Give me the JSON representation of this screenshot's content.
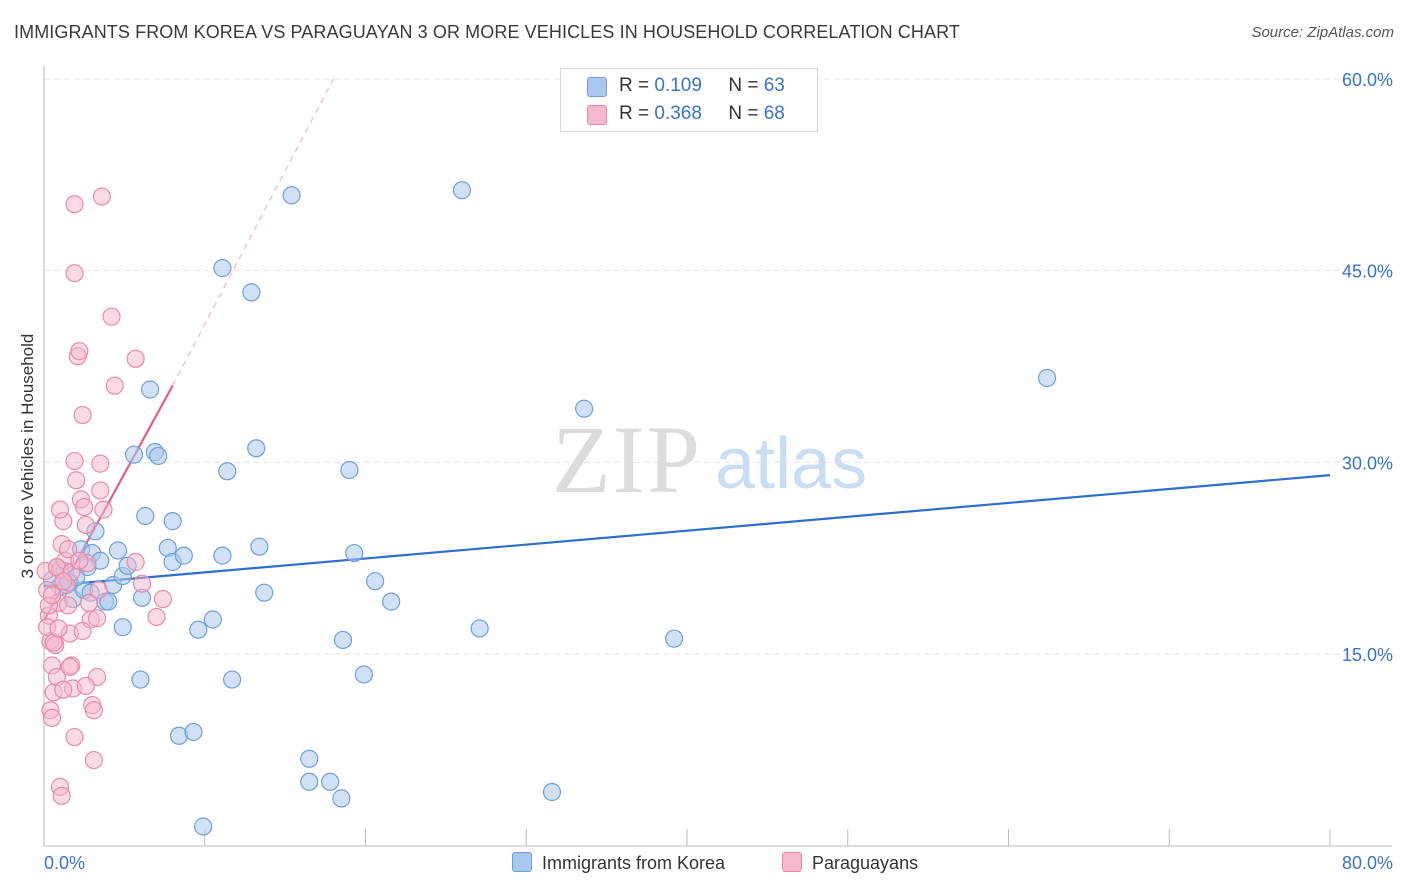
{
  "title": "IMMIGRANTS FROM KOREA VS PARAGUAYAN 3 OR MORE VEHICLES IN HOUSEHOLD CORRELATION CHART",
  "source": "Source: ZipAtlas.com",
  "watermark": {
    "zip": "ZIP",
    "atlas": "atlas"
  },
  "legend": {
    "rows": [
      {
        "r_label": "R =",
        "r_value": "0.109",
        "n_label": "N =",
        "n_value": "63"
      },
      {
        "r_label": "R =",
        "r_value": "0.368",
        "n_label": "N =",
        "n_value": "68"
      }
    ]
  },
  "bottom_legend": {
    "korea": "Immigrants from Korea",
    "paraguay": "Paraguayans"
  },
  "colors": {
    "korea_fill": "#a9c8ee",
    "korea_stroke": "#6f9fd8",
    "korea_line": "#2f6fcc",
    "paraguay_fill": "#f6b8cc",
    "paraguay_stroke": "#e98aa8",
    "paraguay_line": "#e0608a",
    "tick_label": "#3a74c4",
    "grid": "#e3e3e3"
  },
  "chart_data": {
    "type": "scatter",
    "title": "IMMIGRANTS FROM KOREA VS PARAGUAYAN 3 OR MORE VEHICLES IN HOUSEHOLD CORRELATION CHART",
    "xlabel": "",
    "ylabel": "3 or more Vehicles in Household",
    "xlim": [
      0,
      80
    ],
    "ylim": [
      0,
      63
    ],
    "x_tick_labels": [
      "0.0%",
      "80.0%"
    ],
    "y_ticks": [
      15,
      30,
      45,
      60
    ],
    "y_tick_labels": [
      "15.0%",
      "30.0%",
      "45.0%",
      "60.0%"
    ],
    "series": [
      {
        "name": "Immigrants from Korea",
        "R": 0.109,
        "N": 63,
        "trend": {
          "x": [
            0,
            80
          ],
          "y": [
            20.3,
            29.0
          ]
        },
        "points": [
          [
            0.5,
            20.8
          ],
          [
            0.8,
            21.8
          ],
          [
            1.0,
            20.3
          ],
          [
            1.3,
            21.5
          ],
          [
            1.6,
            20.6
          ],
          [
            1.8,
            19.3
          ],
          [
            2.5,
            20.0
          ],
          [
            2.3,
            23.2
          ],
          [
            3.0,
            22.9
          ],
          [
            3.2,
            24.6
          ],
          [
            3.5,
            22.3
          ],
          [
            2.7,
            21.8
          ],
          [
            3.8,
            19.1
          ],
          [
            4.0,
            19.1
          ],
          [
            4.3,
            20.4
          ],
          [
            4.6,
            23.1
          ],
          [
            4.9,
            21.1
          ],
          [
            5.2,
            21.9
          ],
          [
            4.9,
            17.1
          ],
          [
            6.1,
            19.4
          ],
          [
            5.6,
            30.6
          ],
          [
            6.0,
            13.0
          ],
          [
            6.3,
            25.8
          ],
          [
            6.6,
            35.7
          ],
          [
            6.9,
            30.8
          ],
          [
            7.1,
            30.5
          ],
          [
            7.7,
            23.3
          ],
          [
            8.0,
            22.2
          ],
          [
            8.0,
            25.4
          ],
          [
            8.4,
            8.6
          ],
          [
            8.7,
            22.7
          ],
          [
            9.3,
            8.9
          ],
          [
            9.6,
            16.9
          ],
          [
            9.9,
            1.5
          ],
          [
            10.5,
            17.7
          ],
          [
            11.1,
            22.7
          ],
          [
            11.4,
            29.3
          ],
          [
            11.1,
            45.2
          ],
          [
            11.7,
            13.0
          ],
          [
            12.9,
            43.3
          ],
          [
            13.2,
            31.1
          ],
          [
            13.4,
            23.4
          ],
          [
            13.7,
            19.8
          ],
          [
            15.4,
            50.9
          ],
          [
            16.5,
            5.0
          ],
          [
            16.5,
            6.8
          ],
          [
            17.8,
            5.0
          ],
          [
            18.5,
            3.7
          ],
          [
            18.6,
            16.1
          ],
          [
            19.0,
            29.4
          ],
          [
            19.3,
            22.9
          ],
          [
            19.9,
            13.4
          ],
          [
            20.6,
            20.7
          ],
          [
            21.6,
            19.1
          ],
          [
            26.0,
            51.3
          ],
          [
            27.1,
            17.0
          ],
          [
            31.6,
            4.2
          ],
          [
            33.6,
            34.2
          ],
          [
            39.2,
            16.2
          ],
          [
            62.4,
            36.6
          ],
          [
            1.5,
            20.6
          ],
          [
            2.0,
            21.0
          ],
          [
            2.9,
            19.8
          ]
        ]
      },
      {
        "name": "Paraguayans",
        "R": 0.368,
        "N": 68,
        "trend": {
          "x": [
            0,
            8.0
          ],
          "y": [
            17.6,
            36.0
          ]
        },
        "trend_extension": {
          "x": [
            8.0,
            18.0
          ],
          "y": [
            36.0,
            60.0
          ]
        },
        "points": [
          [
            0.1,
            21.5
          ],
          [
            0.2,
            20.0
          ],
          [
            0.3,
            18.0
          ],
          [
            0.4,
            16.0
          ],
          [
            0.5,
            14.1
          ],
          [
            0.6,
            12.0
          ],
          [
            0.4,
            10.6
          ],
          [
            0.5,
            10.0
          ],
          [
            0.7,
            15.7
          ],
          [
            0.8,
            13.2
          ],
          [
            0.9,
            19.0
          ],
          [
            1.0,
            21.6
          ],
          [
            1.1,
            23.6
          ],
          [
            1.2,
            25.4
          ],
          [
            1.0,
            26.3
          ],
          [
            1.3,
            22.3
          ],
          [
            1.4,
            20.4
          ],
          [
            1.5,
            18.8
          ],
          [
            1.6,
            16.6
          ],
          [
            1.7,
            14.1
          ],
          [
            1.8,
            12.3
          ],
          [
            1.9,
            8.5
          ],
          [
            1.9,
            30.1
          ],
          [
            2.0,
            28.6
          ],
          [
            2.1,
            38.3
          ],
          [
            2.2,
            38.7
          ],
          [
            2.3,
            27.1
          ],
          [
            2.4,
            33.7
          ],
          [
            2.5,
            26.5
          ],
          [
            2.6,
            25.1
          ],
          [
            2.7,
            22.1
          ],
          [
            2.8,
            19.0
          ],
          [
            2.9,
            17.7
          ],
          [
            3.0,
            11.0
          ],
          [
            3.1,
            10.6
          ],
          [
            3.1,
            6.7
          ],
          [
            3.3,
            13.2
          ],
          [
            3.4,
            20.0
          ],
          [
            3.5,
            27.8
          ],
          [
            3.5,
            29.9
          ],
          [
            3.7,
            26.3
          ],
          [
            4.2,
            41.4
          ],
          [
            4.4,
            36.0
          ],
          [
            5.7,
            38.1
          ],
          [
            5.7,
            22.2
          ],
          [
            6.1,
            20.5
          ],
          [
            7.0,
            17.9
          ],
          [
            7.4,
            19.3
          ],
          [
            1.9,
            44.8
          ],
          [
            1.9,
            50.2
          ],
          [
            3.6,
            50.8
          ],
          [
            1.0,
            4.6
          ],
          [
            1.1,
            3.9
          ],
          [
            0.2,
            17.1
          ],
          [
            0.3,
            18.8
          ],
          [
            0.8,
            21.8
          ],
          [
            1.5,
            23.2
          ],
          [
            1.7,
            21.4
          ],
          [
            2.2,
            22.3
          ],
          [
            1.2,
            12.2
          ],
          [
            2.6,
            12.5
          ],
          [
            3.3,
            17.8
          ],
          [
            0.6,
            15.9
          ],
          [
            0.9,
            17.0
          ],
          [
            1.6,
            14.0
          ],
          [
            2.4,
            16.8
          ],
          [
            0.5,
            19.6
          ],
          [
            1.2,
            20.7
          ]
        ]
      }
    ]
  }
}
